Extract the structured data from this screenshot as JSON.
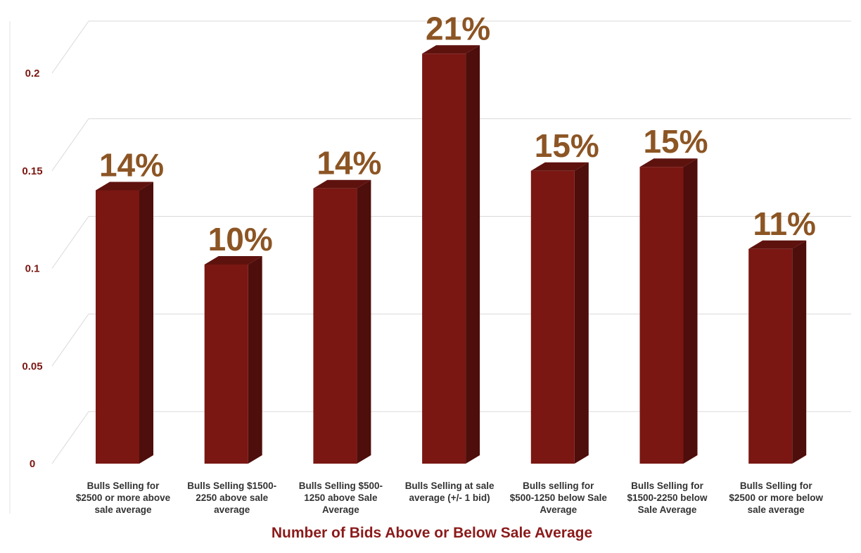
{
  "chart_data": {
    "type": "bar",
    "categories": [
      [
        "Bulls Selling for",
        "$2500 or more above",
        "sale average"
      ],
      [
        "Bulls Selling $1500-",
        "2250 above sale",
        "average"
      ],
      [
        "Bulls Selling $500-",
        "1250 above Sale",
        "Average"
      ],
      [
        "Bulls Selling at sale",
        "average (+/- 1 bid)"
      ],
      [
        "Bulls selling for",
        "$500-1250 below Sale",
        "Average"
      ],
      [
        "Bulls Selling for",
        "$1500-2250 below",
        "Sale Average"
      ],
      [
        "Bulls Selling for",
        "$2500 or more below",
        "sale average"
      ]
    ],
    "values": [
      0.14,
      0.102,
      0.141,
      0.21,
      0.15,
      0.152,
      0.11
    ],
    "data_labels": [
      "14%",
      "10%",
      "14%",
      "21%",
      "15%",
      "15%",
      "11%"
    ],
    "yticks": [
      "0",
      "0.05",
      "0.1",
      "0.15",
      "0.2"
    ],
    "ylim": [
      0,
      0.2
    ],
    "xlabel": "Number of Bids Above or Below Sale Average",
    "grid": true,
    "colors": {
      "bar_front": "#7a1712",
      "bar_side": "#4e0e0b",
      "bar_top": "#5e120e",
      "data_label": "#8c5524",
      "tick_label": "#7a1712",
      "axis_title": "#8b1a1a",
      "grid": "#d9d9d9"
    }
  }
}
